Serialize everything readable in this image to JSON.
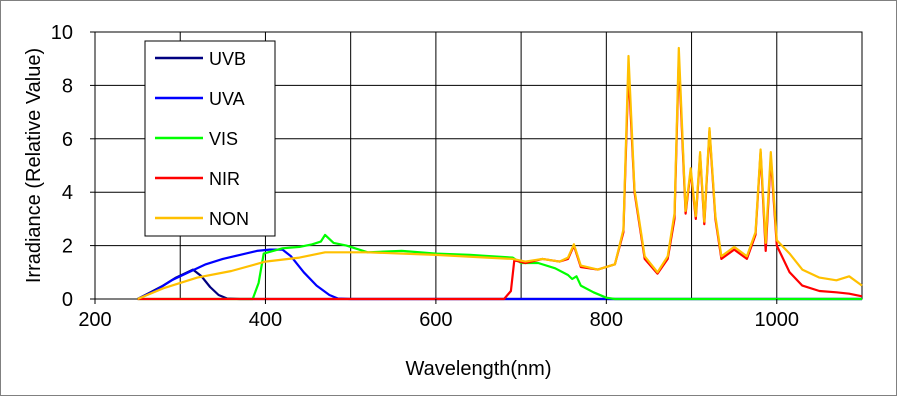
{
  "chart_data": {
    "type": "line",
    "title": "",
    "xlabel": "Wavelength(nm)",
    "ylabel": "Irradiance (Relative Value)",
    "xlim": [
      200,
      1100
    ],
    "ylim": [
      0,
      10
    ],
    "xticks": [
      200,
      400,
      600,
      800,
      1000
    ],
    "yticks": [
      0,
      2,
      4,
      6,
      8,
      10
    ],
    "x_gridlines": [
      200,
      300,
      400,
      500,
      600,
      700,
      800,
      900,
      1000
    ],
    "grid": true,
    "legend_position": "top-left",
    "series": [
      {
        "name": "UVB",
        "color": "#000080",
        "points": [
          [
            250,
            0
          ],
          [
            265,
            0.25
          ],
          [
            280,
            0.5
          ],
          [
            295,
            0.8
          ],
          [
            305,
            0.95
          ],
          [
            315,
            1.1
          ],
          [
            325,
            0.85
          ],
          [
            335,
            0.45
          ],
          [
            345,
            0.15
          ],
          [
            355,
            0.02
          ],
          [
            370,
            0
          ],
          [
            1100,
            0
          ]
        ]
      },
      {
        "name": "UVA",
        "color": "#0000ff",
        "points": [
          [
            250,
            0
          ],
          [
            270,
            0.3
          ],
          [
            290,
            0.7
          ],
          [
            310,
            1.0
          ],
          [
            330,
            1.3
          ],
          [
            350,
            1.5
          ],
          [
            370,
            1.65
          ],
          [
            390,
            1.8
          ],
          [
            405,
            1.85
          ],
          [
            420,
            1.85
          ],
          [
            430,
            1.6
          ],
          [
            445,
            1.0
          ],
          [
            460,
            0.5
          ],
          [
            475,
            0.15
          ],
          [
            485,
            0.02
          ],
          [
            500,
            0
          ],
          [
            1100,
            0
          ]
        ]
      },
      {
        "name": "VIS",
        "color": "#00ff00",
        "points": [
          [
            250,
            0
          ],
          [
            385,
            0
          ],
          [
            392,
            0.6
          ],
          [
            398,
            1.7
          ],
          [
            420,
            1.9
          ],
          [
            440,
            1.95
          ],
          [
            455,
            2.05
          ],
          [
            465,
            2.15
          ],
          [
            470,
            2.4
          ],
          [
            480,
            2.1
          ],
          [
            495,
            2.0
          ],
          [
            520,
            1.75
          ],
          [
            560,
            1.8
          ],
          [
            600,
            1.7
          ],
          [
            640,
            1.65
          ],
          [
            690,
            1.55
          ],
          [
            700,
            1.35
          ],
          [
            720,
            1.35
          ],
          [
            740,
            1.15
          ],
          [
            755,
            0.9
          ],
          [
            760,
            0.75
          ],
          [
            765,
            0.85
          ],
          [
            770,
            0.5
          ],
          [
            785,
            0.25
          ],
          [
            800,
            0.05
          ],
          [
            810,
            0
          ],
          [
            1100,
            0
          ]
        ]
      },
      {
        "name": "NIR",
        "color": "#ff0000",
        "points": [
          [
            250,
            0
          ],
          [
            680,
            0
          ],
          [
            688,
            0.3
          ],
          [
            692,
            1.45
          ],
          [
            705,
            1.35
          ],
          [
            725,
            1.5
          ],
          [
            745,
            1.4
          ],
          [
            755,
            1.5
          ],
          [
            762,
            2.0
          ],
          [
            770,
            1.2
          ],
          [
            790,
            1.1
          ],
          [
            810,
            1.3
          ],
          [
            820,
            2.5
          ],
          [
            826,
            8.6
          ],
          [
            833,
            4.0
          ],
          [
            845,
            1.5
          ],
          [
            860,
            0.95
          ],
          [
            872,
            1.5
          ],
          [
            880,
            3.0
          ],
          [
            885,
            9.0
          ],
          [
            893,
            3.2
          ],
          [
            899,
            4.8
          ],
          [
            905,
            3.0
          ],
          [
            910,
            5.4
          ],
          [
            915,
            2.8
          ],
          [
            921,
            6.3
          ],
          [
            928,
            3.0
          ],
          [
            935,
            1.5
          ],
          [
            950,
            1.85
          ],
          [
            965,
            1.5
          ],
          [
            975,
            2.4
          ],
          [
            981,
            5.5
          ],
          [
            987,
            1.8
          ],
          [
            993,
            5.3
          ],
          [
            1000,
            2.0
          ],
          [
            1015,
            1.0
          ],
          [
            1030,
            0.5
          ],
          [
            1050,
            0.3
          ],
          [
            1070,
            0.25
          ],
          [
            1085,
            0.2
          ],
          [
            1100,
            0.1
          ]
        ]
      },
      {
        "name": "NON",
        "color": "#ffc000",
        "points": [
          [
            250,
            0
          ],
          [
            280,
            0.4
          ],
          [
            320,
            0.8
          ],
          [
            360,
            1.05
          ],
          [
            400,
            1.4
          ],
          [
            440,
            1.55
          ],
          [
            470,
            1.75
          ],
          [
            520,
            1.75
          ],
          [
            600,
            1.65
          ],
          [
            660,
            1.55
          ],
          [
            690,
            1.5
          ],
          [
            705,
            1.4
          ],
          [
            725,
            1.5
          ],
          [
            745,
            1.4
          ],
          [
            755,
            1.55
          ],
          [
            762,
            2.05
          ],
          [
            770,
            1.25
          ],
          [
            790,
            1.1
          ],
          [
            810,
            1.3
          ],
          [
            820,
            2.6
          ],
          [
            826,
            9.1
          ],
          [
            833,
            4.1
          ],
          [
            845,
            1.6
          ],
          [
            860,
            1.0
          ],
          [
            872,
            1.6
          ],
          [
            880,
            3.2
          ],
          [
            885,
            9.4
          ],
          [
            893,
            3.3
          ],
          [
            899,
            4.9
          ],
          [
            905,
            3.1
          ],
          [
            910,
            5.5
          ],
          [
            915,
            2.9
          ],
          [
            921,
            6.4
          ],
          [
            928,
            3.1
          ],
          [
            935,
            1.6
          ],
          [
            950,
            1.95
          ],
          [
            965,
            1.6
          ],
          [
            975,
            2.5
          ],
          [
            981,
            5.6
          ],
          [
            987,
            2.1
          ],
          [
            993,
            5.5
          ],
          [
            1000,
            2.2
          ],
          [
            1015,
            1.7
          ],
          [
            1030,
            1.1
          ],
          [
            1050,
            0.8
          ],
          [
            1070,
            0.7
          ],
          [
            1085,
            0.85
          ],
          [
            1100,
            0.5
          ]
        ]
      }
    ]
  }
}
